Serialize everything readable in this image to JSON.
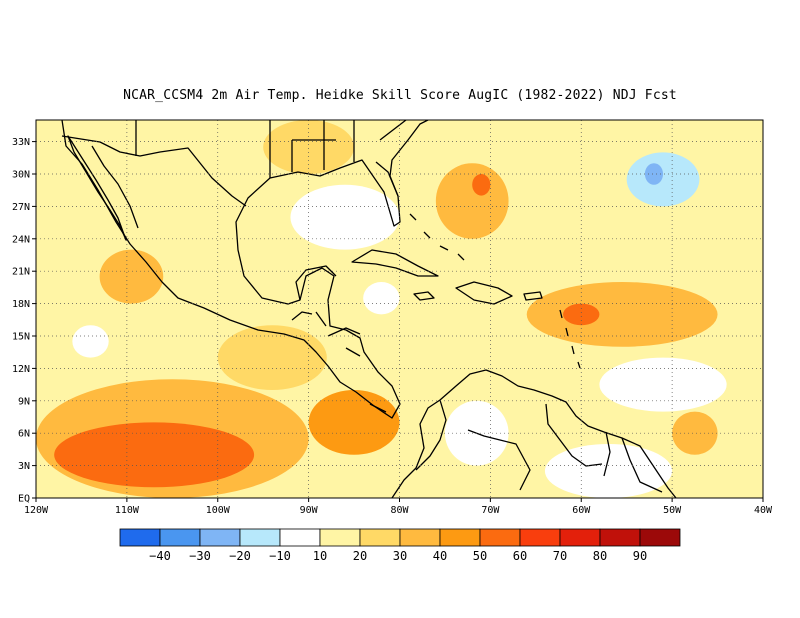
{
  "title": "NCAR_CCSM4  2m Air Temp. Heidke Skill Score AugIC (1982-2022) NDJ Fcst",
  "map": {
    "lon_range": [
      -120,
      -40
    ],
    "lat_range": [
      0,
      35
    ],
    "lon_ticks": [
      {
        "value": -120,
        "label": "120W"
      },
      {
        "value": -110,
        "label": "110W"
      },
      {
        "value": -100,
        "label": "100W"
      },
      {
        "value": -90,
        "label": "90W"
      },
      {
        "value": -80,
        "label": "80W"
      },
      {
        "value": -70,
        "label": "70W"
      },
      {
        "value": -60,
        "label": "60W"
      },
      {
        "value": -50,
        "label": "50W"
      },
      {
        "value": -40,
        "label": "40W"
      }
    ],
    "lat_ticks": [
      {
        "value": 0,
        "label": "EQ"
      },
      {
        "value": 3,
        "label": "3N"
      },
      {
        "value": 6,
        "label": "6N"
      },
      {
        "value": 9,
        "label": "9N"
      },
      {
        "value": 12,
        "label": "12N"
      },
      {
        "value": 15,
        "label": "15N"
      },
      {
        "value": 18,
        "label": "18N"
      },
      {
        "value": 21,
        "label": "21N"
      },
      {
        "value": 24,
        "label": "24N"
      },
      {
        "value": 27,
        "label": "27N"
      },
      {
        "value": 30,
        "label": "30N"
      },
      {
        "value": 33,
        "label": "33N"
      }
    ],
    "grid": "dotted",
    "skill_regions": [
      {
        "lon": [
          -120,
          -40
        ],
        "lat": [
          0,
          35
        ],
        "class": "10-20"
      },
      {
        "lon": [
          -120,
          -90
        ],
        "lat": [
          0,
          11
        ],
        "class": "30-40"
      },
      {
        "lon": [
          -118,
          -96
        ],
        "lat": [
          1,
          7
        ],
        "class": "50-60"
      },
      {
        "lon": [
          -90,
          -80
        ],
        "lat": [
          4,
          10
        ],
        "class": "40-50"
      },
      {
        "lon": [
          -100,
          -88
        ],
        "lat": [
          10,
          16
        ],
        "class": "20-30"
      },
      {
        "lon": [
          -113,
          -106
        ],
        "lat": [
          18,
          23
        ],
        "class": "30-40"
      },
      {
        "lon": [
          -92,
          -80
        ],
        "lat": [
          23,
          29
        ],
        "class": "0-10"
      },
      {
        "lon": [
          -76,
          -68
        ],
        "lat": [
          24,
          31
        ],
        "class": "30-40"
      },
      {
        "lon": [
          -72,
          -70
        ],
        "lat": [
          28,
          30
        ],
        "class": "50-60"
      },
      {
        "lon": [
          -66,
          -45
        ],
        "lat": [
          14,
          20
        ],
        "class": "30-40"
      },
      {
        "lon": [
          -62,
          -58
        ],
        "lat": [
          16,
          18
        ],
        "class": "50-60"
      },
      {
        "lon": [
          -64,
          -50
        ],
        "lat": [
          0,
          5
        ],
        "class": "0-10"
      },
      {
        "lon": [
          -75,
          -68
        ],
        "lat": [
          3,
          9
        ],
        "class": "0-10"
      },
      {
        "lon": [
          -50,
          -45
        ],
        "lat": [
          4,
          8
        ],
        "class": "30-40"
      },
      {
        "lon": [
          -55,
          -47
        ],
        "lat": [
          27,
          32
        ],
        "class": "-20--10"
      },
      {
        "lon": [
          -53,
          -51
        ],
        "lat": [
          29,
          31
        ],
        "class": "-30--20"
      },
      {
        "lon": [
          -58,
          -44
        ],
        "lat": [
          8,
          13
        ],
        "class": "0-10"
      },
      {
        "lon": [
          -116,
          -112
        ],
        "lat": [
          13,
          16
        ],
        "class": "0-10"
      },
      {
        "lon": [
          -84,
          -80
        ],
        "lat": [
          17,
          20
        ],
        "class": "0-10"
      },
      {
        "lon": [
          -95,
          -85
        ],
        "lat": [
          30,
          35
        ],
        "class": "20-30"
      }
    ]
  },
  "colorbar": {
    "colors": [
      "#1f6bed",
      "#4a96f0",
      "#7fb5f5",
      "#b7e8fb",
      "#ffffff",
      "#fff5a5",
      "#ffd966",
      "#ffba3f",
      "#fd9a12",
      "#fb6b10",
      "#f93e0d",
      "#e3200b",
      "#c0110a",
      "#9c0909"
    ],
    "labels": [
      "-40",
      "-30",
      "-20",
      "-10",
      "10",
      "20",
      "30",
      "40",
      "50",
      "60",
      "70",
      "80",
      "90"
    ]
  },
  "class_colors": {
    "-30--20": "#7fb5f5",
    "-20--10": "#b7e8fb",
    "0-10": "#ffffff",
    "10-20": "#fff5a5",
    "20-30": "#ffd966",
    "30-40": "#ffba3f",
    "40-50": "#fd9a12",
    "50-60": "#fb6b10"
  }
}
